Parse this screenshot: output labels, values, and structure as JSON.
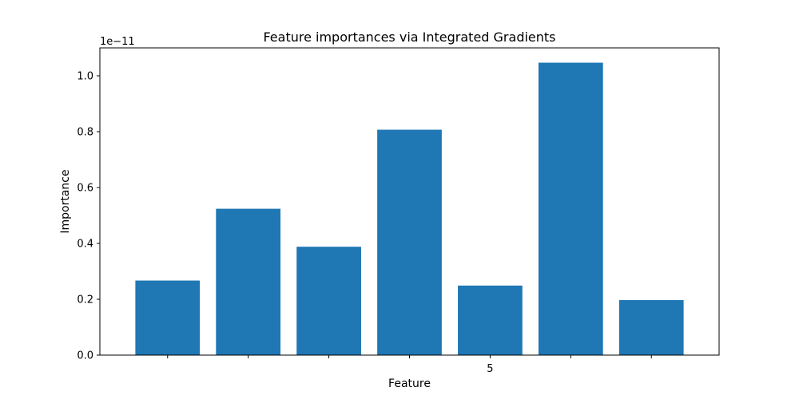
{
  "chart_data": {
    "type": "bar",
    "title": "Feature importances via Integrated Gradients",
    "xlabel": "Feature",
    "ylabel": "Importance",
    "y_offset_label": "1e−11",
    "y_scale": 1e-11,
    "categories": [
      "",
      "",
      "",
      "",
      "5",
      "",
      ""
    ],
    "values": [
      0.267,
      0.524,
      0.388,
      0.807,
      0.249,
      1.047,
      0.197
    ],
    "ylim": [
      0,
      1.1
    ],
    "yticks": [
      0.0,
      0.2,
      0.4,
      0.6,
      0.8,
      1.0
    ],
    "ytick_labels": [
      "0.0",
      "0.2",
      "0.4",
      "0.6",
      "0.8",
      "1.0"
    ],
    "bar_color": "#1f77b4",
    "grid": false,
    "legend": "none"
  }
}
